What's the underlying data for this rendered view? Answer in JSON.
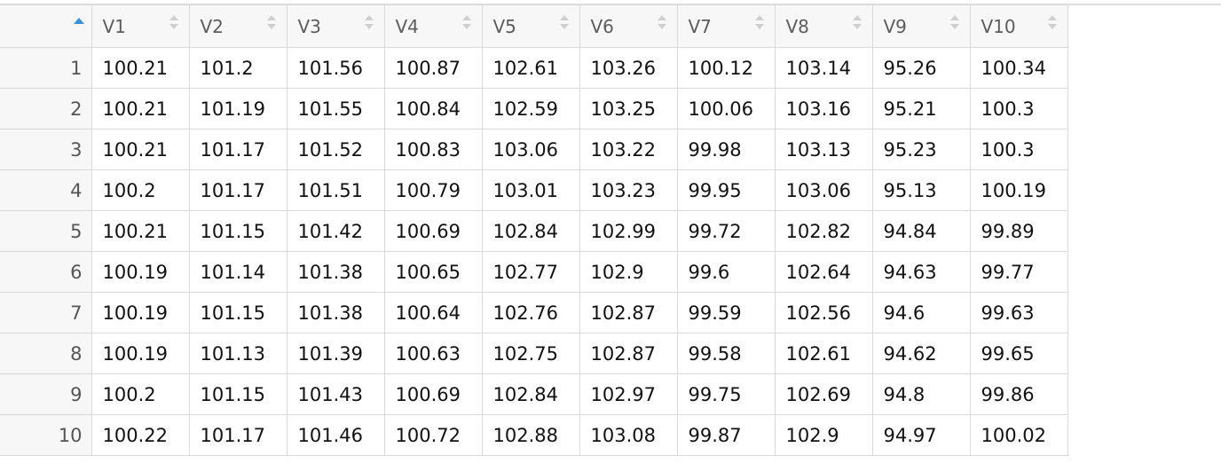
{
  "table": {
    "columns": [
      "V1",
      "V2",
      "V3",
      "V4",
      "V5",
      "V6",
      "V7",
      "V8",
      "V9",
      "V10"
    ],
    "rows": [
      {
        "index": "1",
        "cells": [
          "100.21",
          "101.2",
          "101.56",
          "100.87",
          "102.61",
          "103.26",
          "100.12",
          "103.14",
          "95.26",
          "100.34"
        ]
      },
      {
        "index": "2",
        "cells": [
          "100.21",
          "101.19",
          "101.55",
          "100.84",
          "102.59",
          "103.25",
          "100.06",
          "103.16",
          "95.21",
          "100.3"
        ]
      },
      {
        "index": "3",
        "cells": [
          "100.21",
          "101.17",
          "101.52",
          "100.83",
          "103.06",
          "103.22",
          "99.98",
          "103.13",
          "95.23",
          "100.3"
        ]
      },
      {
        "index": "4",
        "cells": [
          "100.2",
          "101.17",
          "101.51",
          "100.79",
          "103.01",
          "103.23",
          "99.95",
          "103.06",
          "95.13",
          "100.19"
        ]
      },
      {
        "index": "5",
        "cells": [
          "100.21",
          "101.15",
          "101.42",
          "100.69",
          "102.84",
          "102.99",
          "99.72",
          "102.82",
          "94.84",
          "99.89"
        ]
      },
      {
        "index": "6",
        "cells": [
          "100.19",
          "101.14",
          "101.38",
          "100.65",
          "102.77",
          "102.9",
          "99.6",
          "102.64",
          "94.63",
          "99.77"
        ]
      },
      {
        "index": "7",
        "cells": [
          "100.19",
          "101.15",
          "101.38",
          "100.64",
          "102.76",
          "102.87",
          "99.59",
          "102.56",
          "94.6",
          "99.63"
        ]
      },
      {
        "index": "8",
        "cells": [
          "100.19",
          "101.13",
          "101.39",
          "100.63",
          "102.75",
          "102.87",
          "99.58",
          "102.61",
          "94.62",
          "99.65"
        ]
      },
      {
        "index": "9",
        "cells": [
          "100.2",
          "101.15",
          "101.43",
          "100.69",
          "102.84",
          "102.97",
          "99.75",
          "102.69",
          "94.8",
          "99.86"
        ]
      },
      {
        "index": "10",
        "cells": [
          "100.22",
          "101.17",
          "101.46",
          "100.72",
          "102.88",
          "103.08",
          "99.87",
          "102.9",
          "94.97",
          "100.02"
        ]
      }
    ],
    "sort": {
      "column": "index",
      "direction": "ascending",
      "indicator_color": "#3a8fd9"
    }
  }
}
